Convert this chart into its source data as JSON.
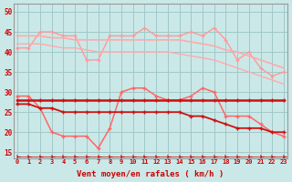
{
  "background_color": "#cbe8e8",
  "grid_color": "#a0c8c8",
  "xlabel": "Vent moyen/en rafales ( km/h )",
  "xlabel_color": "#cc0000",
  "ylabel_color": "#cc0000",
  "yticks": [
    15,
    20,
    25,
    30,
    35,
    40,
    45,
    50
  ],
  "xticks": [
    0,
    1,
    2,
    3,
    4,
    5,
    6,
    7,
    8,
    9,
    10,
    11,
    12,
    13,
    14,
    15,
    16,
    17,
    18,
    19,
    20,
    21,
    22,
    23
  ],
  "xlim": [
    -0.3,
    23.3
  ],
  "ylim": [
    13.5,
    52
  ],
  "x": [
    0,
    1,
    2,
    3,
    4,
    5,
    6,
    7,
    8,
    9,
    10,
    11,
    12,
    13,
    14,
    15,
    16,
    17,
    18,
    19,
    20,
    21,
    22,
    23
  ],
  "series": [
    {
      "label": "rafales_max_line",
      "color": "#ff9999",
      "linewidth": 1.0,
      "marker": "+",
      "markersize": 3.5,
      "markeredgewidth": 1.0,
      "y": [
        41,
        41,
        45,
        45,
        44,
        44,
        38,
        38,
        44,
        44,
        44,
        46,
        44,
        44,
        44,
        45,
        44,
        46,
        43,
        38,
        40,
        36,
        34,
        35
      ]
    },
    {
      "label": "rafales_trend_high",
      "color": "#ffaaaa",
      "linewidth": 1.2,
      "marker": null,
      "markersize": 0,
      "markeredgewidth": 0,
      "y": [
        44,
        44,
        44,
        43.5,
        43.5,
        43,
        43,
        43,
        43,
        43,
        43,
        43,
        43,
        43,
        43,
        42.5,
        42,
        41.5,
        40.5,
        40,
        39,
        38,
        37,
        36
      ]
    },
    {
      "label": "rafales_trend_low",
      "color": "#ffaaaa",
      "linewidth": 1.0,
      "marker": null,
      "markersize": 0,
      "markeredgewidth": 0,
      "y": [
        42,
        42,
        42,
        41.5,
        41,
        41,
        40.5,
        40,
        40,
        40,
        40,
        40,
        40,
        40,
        39.5,
        39,
        38.5,
        38,
        37,
        36,
        35,
        34,
        33,
        32
      ]
    },
    {
      "label": "vent_max_line",
      "color": "#ff6666",
      "linewidth": 1.1,
      "marker": "+",
      "markersize": 3.5,
      "markeredgewidth": 1.0,
      "y": [
        29,
        29,
        26,
        20,
        19,
        19,
        19,
        16,
        21,
        30,
        31,
        31,
        29,
        28,
        28,
        29,
        31,
        30,
        24,
        24,
        24,
        22,
        20,
        19
      ]
    },
    {
      "label": "vent_moy_flat",
      "color": "#cc1111",
      "linewidth": 1.8,
      "marker": "+",
      "markersize": 2.5,
      "markeredgewidth": 1.0,
      "y": [
        28,
        28,
        28,
        28,
        28,
        28,
        28,
        28,
        28,
        28,
        28,
        28,
        28,
        28,
        28,
        28,
        28,
        28,
        28,
        28,
        28,
        28,
        28,
        28
      ]
    },
    {
      "label": "vent_moy_decline",
      "color": "#cc1111",
      "linewidth": 1.3,
      "marker": "+",
      "markersize": 2.5,
      "markeredgewidth": 1.0,
      "y": [
        27,
        27,
        26,
        26,
        25,
        25,
        25,
        25,
        25,
        25,
        25,
        25,
        25,
        25,
        25,
        24,
        24,
        23,
        22,
        21,
        21,
        21,
        20,
        20
      ]
    },
    {
      "label": "wind_arrows",
      "color": "#cc0000",
      "linewidth": 0.5,
      "marker": "4",
      "markersize": 4,
      "markeredgewidth": 0.8,
      "y": [
        14,
        14,
        14,
        14,
        14,
        14,
        14,
        14,
        14,
        14,
        14,
        14,
        14,
        14,
        14,
        14,
        14,
        14,
        14,
        14,
        14,
        14,
        14,
        14
      ]
    }
  ]
}
